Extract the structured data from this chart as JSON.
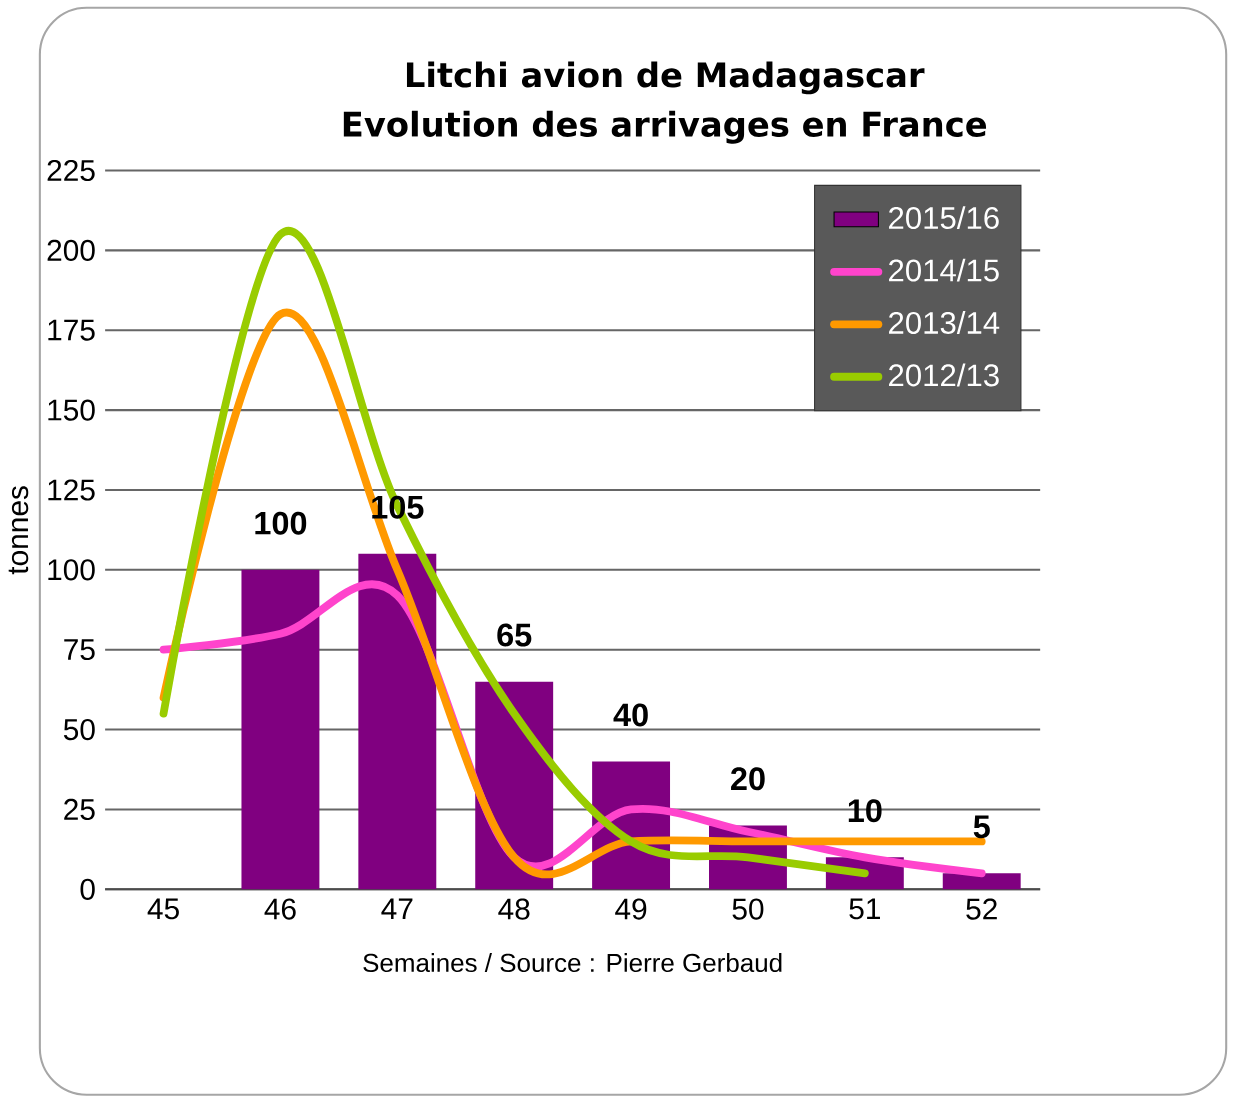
{
  "chart_data": {
    "type": "bar",
    "title": "Litchi avion de Madagascar",
    "subtitle": "Evolution des arrivages en France",
    "xlabel": "Semaines / Source : Pierre Gerbaud",
    "ylabel": "tonnes",
    "categories": [
      "45",
      "46",
      "47",
      "48",
      "49",
      "50",
      "51",
      "52"
    ],
    "series": [
      {
        "name": "2015/16",
        "color": "#800080",
        "values": [
          null,
          100,
          105,
          65,
          40,
          20,
          10,
          5
        ],
        "value_labels": [
          null,
          "100",
          "105",
          "65",
          "40",
          "20",
          "10",
          "5"
        ]
      },
      {
        "name": "2014/15",
        "type": "line",
        "color": "#ff44cc",
        "values": [
          75,
          80,
          92,
          10,
          25,
          18,
          10,
          5
        ]
      },
      {
        "name": "2013/14",
        "type": "line",
        "color": "#ff9900",
        "values": [
          60,
          180,
          100,
          10,
          15,
          15,
          15,
          15
        ]
      },
      {
        "name": "2012/13",
        "type": "line",
        "color": "#99cc00",
        "values": [
          55,
          205,
          120,
          55,
          15,
          10,
          5,
          null
        ]
      }
    ],
    "ylim": [
      0,
      225
    ],
    "yticks": [
      0,
      25,
      50,
      75,
      100,
      125,
      150,
      175,
      200,
      225
    ],
    "grid": "y",
    "legend": "top right"
  }
}
